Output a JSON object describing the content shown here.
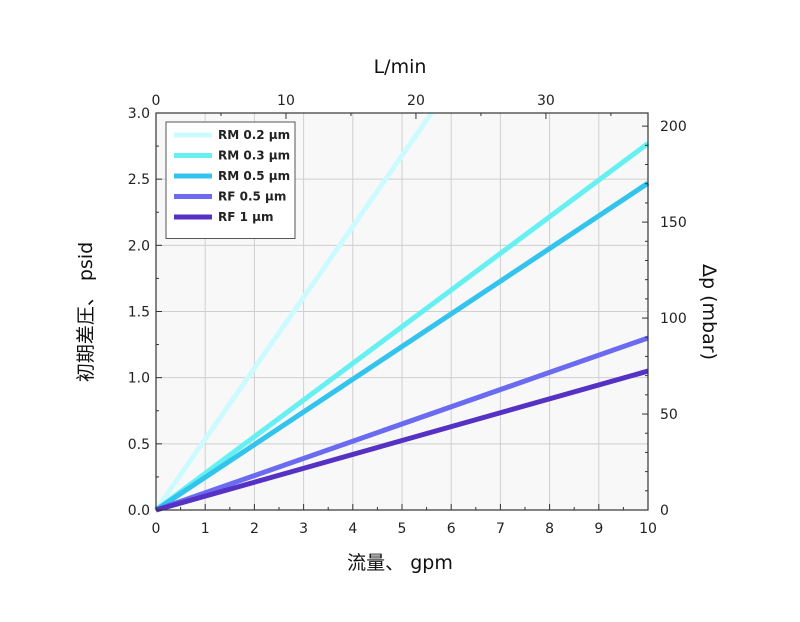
{
  "chart_data": {
    "type": "line",
    "xlabel": "流量、 gpm",
    "ylabel": "初期差圧、 psid",
    "x2label": "L/min",
    "y2label": "Δp (mbar)",
    "xlim": [
      0,
      10
    ],
    "ylim": [
      0,
      3.0
    ],
    "x2lim": [
      0,
      37.854
    ],
    "y2lim": [
      0,
      206.84
    ],
    "xticks": [
      0,
      1,
      2,
      3,
      4,
      5,
      6,
      7,
      8,
      9,
      10
    ],
    "yticks": [
      0.0,
      0.5,
      1.0,
      1.5,
      2.0,
      2.5,
      3.0
    ],
    "x2ticks": [
      0,
      10,
      20,
      30
    ],
    "y2ticks": [
      0,
      50,
      100,
      150,
      200
    ],
    "xtick_labels": [
      "0",
      "1",
      "2",
      "3",
      "4",
      "5",
      "6",
      "7",
      "8",
      "9",
      "10"
    ],
    "ytick_labels": [
      "0.0",
      "0.5",
      "1.0",
      "1.5",
      "2.0",
      "2.5",
      "3.0"
    ],
    "x2tick_labels": [
      "0",
      "10",
      "20",
      "30"
    ],
    "y2tick_labels": [
      "0",
      "50",
      "100",
      "150",
      "200"
    ],
    "grid": true,
    "legend_position": "top-left",
    "series": [
      {
        "name": "RM 0.2 µm",
        "color": "#ccfbff",
        "x": [
          0,
          5.6
        ],
        "y": [
          0,
          3.0
        ]
      },
      {
        "name": "RM 0.3 µm",
        "color": "#66f0f2",
        "x": [
          0,
          10
        ],
        "y": [
          0,
          2.77
        ]
      },
      {
        "name": "RM 0.5 µm",
        "color": "#33c4ee",
        "x": [
          0,
          10
        ],
        "y": [
          0,
          2.47
        ]
      },
      {
        "name": "RF 0.5 µm",
        "color": "#6b6bf2",
        "x": [
          0,
          10
        ],
        "y": [
          0,
          1.3
        ]
      },
      {
        "name": "RF  1 µm",
        "color": "#5531c4",
        "x": [
          0,
          10
        ],
        "y": [
          0,
          1.05
        ]
      }
    ]
  }
}
